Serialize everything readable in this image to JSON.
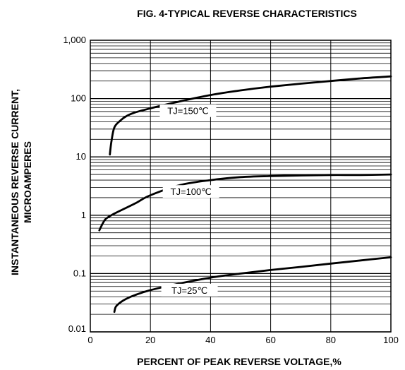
{
  "chart_data": {
    "type": "line",
    "title": "FIG. 4-TYPICAL REVERSE CHARACTERISTICS",
    "xlabel": "PERCENT OF PEAK REVERSE VOLTAGE,%",
    "ylabel_line1": "INSTANTANEOUS REVERSE CURRENT,",
    "ylabel_line2": "MICROAMPERES",
    "xlim": [
      0,
      100
    ],
    "ylim": [
      0.01,
      1000
    ],
    "yscale": "log",
    "grid": true,
    "x_ticks": [
      0,
      20,
      40,
      60,
      80,
      100
    ],
    "x_tick_labels": [
      "0",
      "20",
      "40",
      "60",
      "80",
      "100"
    ],
    "y_ticks": [
      0.01,
      0.1,
      1,
      10,
      100,
      1000
    ],
    "y_tick_labels": [
      "0.01",
      "0.1",
      "1",
      "10",
      "100",
      "1,000"
    ],
    "series": [
      {
        "name": "TJ=150℃",
        "x": [
          6.5,
          7,
          8,
          10,
          12,
          15,
          20,
          30,
          40,
          50,
          60,
          70,
          80,
          90,
          100
        ],
        "y": [
          11,
          18,
          32,
          42,
          50,
          58,
          68,
          90,
          115,
          138,
          160,
          180,
          200,
          222,
          240
        ]
      },
      {
        "name": "TJ=100℃",
        "x": [
          3,
          4,
          5,
          7,
          10,
          15,
          20,
          30,
          40,
          50,
          60,
          70,
          80,
          90,
          100
        ],
        "y": [
          0.55,
          0.7,
          0.85,
          1.0,
          1.2,
          1.6,
          2.2,
          3.3,
          4.0,
          4.5,
          4.7,
          4.8,
          4.9,
          4.9,
          5.0
        ]
      },
      {
        "name": "TJ=25℃",
        "x": [
          8,
          8.5,
          10,
          12,
          15,
          20,
          30,
          40,
          50,
          60,
          70,
          80,
          90,
          100
        ],
        "y": [
          0.022,
          0.027,
          0.032,
          0.037,
          0.043,
          0.052,
          0.068,
          0.085,
          0.1,
          0.115,
          0.13,
          0.148,
          0.168,
          0.19
        ]
      }
    ]
  }
}
